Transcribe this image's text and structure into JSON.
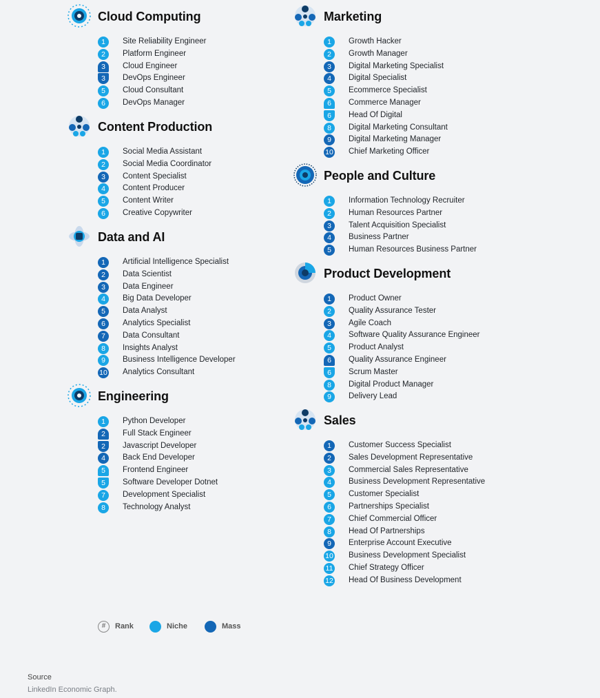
{
  "sections": [
    {
      "id": "cloud",
      "title": "Cloud Computing",
      "icon": "cloud-computing-icon",
      "items": [
        {
          "rank": "1",
          "type": "niche",
          "label": "Site Reliability Engineer"
        },
        {
          "rank": "2",
          "type": "niche",
          "label": "Platform Engineer"
        },
        {
          "rank": "3",
          "type": "mass",
          "tie": "top",
          "label": "Cloud Engineer"
        },
        {
          "rank": "3",
          "type": "mass",
          "tie": "bot",
          "label": "DevOps Engineer"
        },
        {
          "rank": "5",
          "type": "niche",
          "label": "Cloud Consultant"
        },
        {
          "rank": "6",
          "type": "niche",
          "label": "DevOps Manager"
        }
      ]
    },
    {
      "id": "content",
      "title": "Content Production",
      "icon": "content-production-icon",
      "items": [
        {
          "rank": "1",
          "type": "niche",
          "label": "Social Media Assistant"
        },
        {
          "rank": "2",
          "type": "niche",
          "label": "Social Media Coordinator"
        },
        {
          "rank": "3",
          "type": "mass",
          "label": "Content Specialist"
        },
        {
          "rank": "4",
          "type": "niche",
          "label": "Content Producer"
        },
        {
          "rank": "5",
          "type": "niche",
          "label": "Content Writer"
        },
        {
          "rank": "6",
          "type": "niche",
          "label": "Creative Copywriter"
        }
      ]
    },
    {
      "id": "data",
      "title": "Data and AI",
      "icon": "data-ai-icon",
      "items": [
        {
          "rank": "1",
          "type": "mass",
          "label": "Artificial Intelligence Specialist"
        },
        {
          "rank": "2",
          "type": "mass",
          "label": "Data Scientist"
        },
        {
          "rank": "3",
          "type": "mass",
          "label": "Data Engineer"
        },
        {
          "rank": "4",
          "type": "niche",
          "label": "Big Data Developer"
        },
        {
          "rank": "5",
          "type": "mass",
          "label": "Data Analyst"
        },
        {
          "rank": "6",
          "type": "mass",
          "label": "Analytics Specialist"
        },
        {
          "rank": "7",
          "type": "mass",
          "label": "Data Consultant"
        },
        {
          "rank": "8",
          "type": "niche",
          "label": "Insights Analyst"
        },
        {
          "rank": "9",
          "type": "niche",
          "label": "Business Intelligence Developer"
        },
        {
          "rank": "10",
          "type": "mass",
          "label": "Analytics Consultant"
        }
      ]
    },
    {
      "id": "engineering",
      "title": "Engineering",
      "icon": "engineering-icon",
      "items": [
        {
          "rank": "1",
          "type": "niche",
          "label": "Python Developer"
        },
        {
          "rank": "2",
          "type": "mass",
          "tie": "top",
          "label": "Full Stack Engineer"
        },
        {
          "rank": "2",
          "type": "mass",
          "tie": "bot",
          "label": "Javascript Developer"
        },
        {
          "rank": "4",
          "type": "mass",
          "label": "Back End Developer"
        },
        {
          "rank": "5",
          "type": "niche",
          "tie": "top",
          "label": "Frontend Engineer"
        },
        {
          "rank": "5",
          "type": "niche",
          "tie": "bot",
          "label": "Software Developer Dotnet"
        },
        {
          "rank": "7",
          "type": "niche",
          "label": "Development Specialist"
        },
        {
          "rank": "8",
          "type": "niche",
          "label": "Technology Analyst"
        }
      ]
    },
    {
      "id": "marketing",
      "title": "Marketing",
      "icon": "marketing-icon",
      "items": [
        {
          "rank": "1",
          "type": "niche",
          "label": "Growth Hacker"
        },
        {
          "rank": "2",
          "type": "niche",
          "label": "Growth Manager"
        },
        {
          "rank": "3",
          "type": "mass",
          "label": "Digital Marketing Specialist"
        },
        {
          "rank": "4",
          "type": "mass",
          "label": "Digital Specialist"
        },
        {
          "rank": "5",
          "type": "niche",
          "label": "Ecommerce Specialist"
        },
        {
          "rank": "6",
          "type": "niche",
          "tie": "top",
          "label": "Commerce Manager"
        },
        {
          "rank": "6",
          "type": "niche",
          "tie": "bot",
          "label": "Head Of Digital"
        },
        {
          "rank": "8",
          "type": "niche",
          "label": "Digital Marketing Consultant"
        },
        {
          "rank": "9",
          "type": "mass",
          "label": "Digital Marketing Manager"
        },
        {
          "rank": "10",
          "type": "mass",
          "label": "Chief Marketing Officer"
        }
      ]
    },
    {
      "id": "people",
      "title": "People and Culture",
      "icon": "people-culture-icon",
      "items": [
        {
          "rank": "1",
          "type": "niche",
          "label": "Information Technology Recruiter"
        },
        {
          "rank": "2",
          "type": "niche",
          "label": "Human Resources Partner"
        },
        {
          "rank": "3",
          "type": "mass",
          "label": "Talent Acquisition Specialist"
        },
        {
          "rank": "4",
          "type": "mass",
          "label": "Business Partner"
        },
        {
          "rank": "5",
          "type": "mass",
          "label": "Human Resources Business Partner"
        }
      ]
    },
    {
      "id": "product",
      "title": "Product Development",
      "icon": "product-development-icon",
      "items": [
        {
          "rank": "1",
          "type": "mass",
          "label": "Product Owner"
        },
        {
          "rank": "2",
          "type": "niche",
          "label": "Quality Assurance Tester"
        },
        {
          "rank": "3",
          "type": "mass",
          "label": "Agile Coach"
        },
        {
          "rank": "4",
          "type": "niche",
          "label": "Software Quality Assurance Engineer"
        },
        {
          "rank": "5",
          "type": "niche",
          "label": "Product Analyst"
        },
        {
          "rank": "6",
          "type": "mass",
          "tie": "top",
          "label": "Quality Assurance Engineer"
        },
        {
          "rank": "6",
          "type": "niche",
          "tie": "bot",
          "label": "Scrum Master"
        },
        {
          "rank": "8",
          "type": "niche",
          "label": "Digital Product Manager"
        },
        {
          "rank": "9",
          "type": "niche",
          "label": "Delivery Lead"
        }
      ]
    },
    {
      "id": "sales",
      "title": "Sales",
      "icon": "sales-icon",
      "items": [
        {
          "rank": "1",
          "type": "mass",
          "label": "Customer Success Specialist"
        },
        {
          "rank": "2",
          "type": "mass",
          "label": "Sales Development Representative"
        },
        {
          "rank": "3",
          "type": "niche",
          "label": "Commercial Sales Representative"
        },
        {
          "rank": "4",
          "type": "niche",
          "label": "Business Development Representative"
        },
        {
          "rank": "5",
          "type": "niche",
          "label": "Customer Specialist"
        },
        {
          "rank": "6",
          "type": "niche",
          "label": "Partnerships Specialist"
        },
        {
          "rank": "7",
          "type": "niche",
          "label": "Chief Commercial Officer"
        },
        {
          "rank": "8",
          "type": "niche",
          "label": "Head Of Partnerships"
        },
        {
          "rank": "9",
          "type": "mass",
          "label": "Enterprise Account Executive"
        },
        {
          "rank": "10",
          "type": "niche",
          "label": "Business Development Specialist"
        },
        {
          "rank": "11",
          "type": "niche",
          "label": "Chief Strategy Officer"
        },
        {
          "rank": "12",
          "type": "niche",
          "label": "Head Of Business Development"
        }
      ]
    }
  ],
  "legend": {
    "rank_symbol": "#",
    "rank_label": "Rank",
    "niche_label": "Niche",
    "mass_label": "Mass"
  },
  "colors": {
    "niche": "#1aa6e6",
    "mass": "#1467b6",
    "icon_dark": "#0d3b66"
  },
  "source": {
    "title": "Source",
    "text": "LinkedIn Economic Graph."
  }
}
